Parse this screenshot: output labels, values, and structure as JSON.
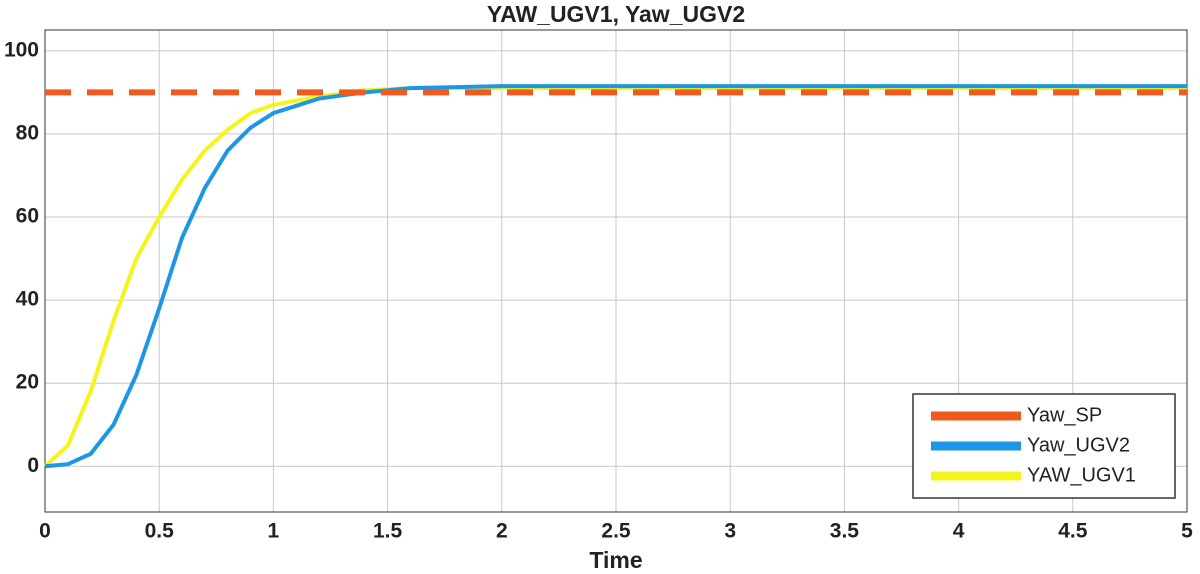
{
  "chart_data": {
    "type": "line",
    "title": "YAW_UGV1, Yaw_UGV2",
    "x_label": "Time",
    "x": [
      0,
      0.1,
      0.2,
      0.3,
      0.4,
      0.5,
      0.6,
      0.7,
      0.8,
      0.9,
      1.0,
      1.2,
      1.4,
      1.6,
      2,
      3,
      4,
      5
    ],
    "series": [
      {
        "name": "Yaw_SP",
        "color": "#f05a1e",
        "style": "dashed",
        "values": [
          90,
          90,
          90,
          90,
          90,
          90,
          90,
          90,
          90,
          90,
          90,
          90,
          90,
          90,
          90,
          90,
          90,
          90
        ]
      },
      {
        "name": "Yaw_UGV2",
        "color": "#1e96e6",
        "style": "solid",
        "values": [
          0,
          0.5,
          3,
          10,
          22,
          38,
          55,
          67,
          76,
          81.5,
          85,
          88.5,
          90,
          91,
          91.5,
          91.5,
          91.5,
          91.5
        ]
      },
      {
        "name": "YAW_UGV1",
        "color": "#f5f51e",
        "style": "solid",
        "values": [
          0,
          5,
          18,
          35,
          50,
          60,
          69,
          76,
          81,
          85,
          87,
          89,
          90.5,
          91,
          91,
          91,
          91,
          91
        ]
      }
    ],
    "xlim": [
      0,
      5
    ],
    "xticks": [
      0,
      0.5,
      1,
      1.5,
      2,
      2.5,
      3,
      3.5,
      4,
      4.5,
      5
    ],
    "ylim": [
      -11,
      105
    ],
    "yticks": [
      0,
      20,
      40,
      60,
      80,
      100
    ],
    "grid": true,
    "legend": "lower right"
  }
}
